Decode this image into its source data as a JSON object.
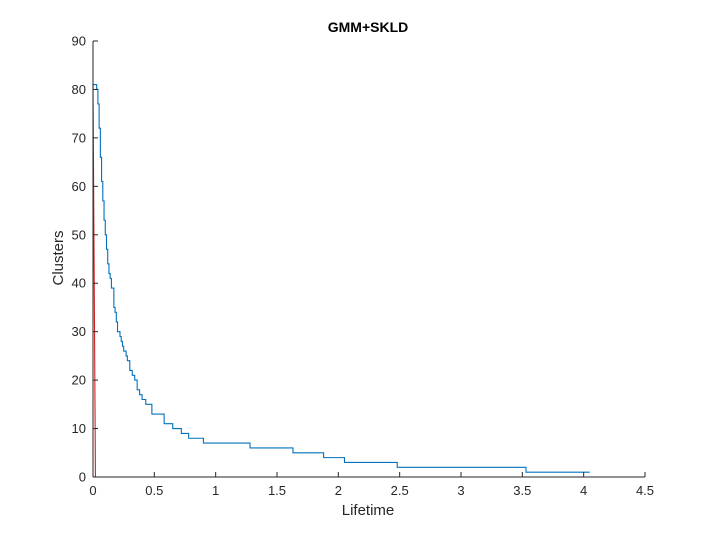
{
  "chart_data": {
    "type": "line",
    "title": "GMM+SKLD",
    "xlabel": "Lifetime",
    "ylabel": "Clusters",
    "xlim": [
      0,
      4.5
    ],
    "ylim": [
      0,
      90
    ],
    "xticks": [
      0,
      0.5,
      1,
      1.5,
      2,
      2.5,
      3,
      3.5,
      4,
      4.5
    ],
    "xtick_labels": [
      "0",
      "0.5",
      "1",
      "1.5",
      "2",
      "2.5",
      "3",
      "3.5",
      "4",
      "4.5"
    ],
    "yticks": [
      0,
      10,
      20,
      30,
      40,
      50,
      60,
      70,
      80,
      90
    ],
    "ytick_labels": [
      "0",
      "10",
      "20",
      "30",
      "40",
      "50",
      "60",
      "70",
      "80",
      "90"
    ],
    "grid": false,
    "colors": {
      "series_blue": "#0072BD",
      "series_red": "#D62020",
      "axis": "#262626"
    },
    "series": [
      {
        "style": "stairs",
        "color": "#0072BD",
        "x": [
          0.0,
          0.03,
          0.04,
          0.05,
          0.06,
          0.07,
          0.08,
          0.09,
          0.1,
          0.11,
          0.12,
          0.13,
          0.14,
          0.15,
          0.17,
          0.18,
          0.19,
          0.2,
          0.22,
          0.23,
          0.24,
          0.25,
          0.27,
          0.28,
          0.3,
          0.32,
          0.34,
          0.36,
          0.38,
          0.4,
          0.43,
          0.46,
          0.48,
          0.55,
          0.58,
          0.65,
          0.72,
          0.75,
          0.78,
          0.9,
          0.97,
          1.28,
          1.63,
          1.88,
          2.05,
          2.48,
          3.53,
          4.05
        ],
        "y": [
          81,
          80,
          77,
          72,
          66,
          61,
          57,
          53,
          50,
          47,
          44,
          42,
          41,
          39,
          35,
          34,
          32,
          30,
          29,
          28,
          27,
          26,
          25,
          24,
          22,
          21,
          20,
          18,
          17,
          16,
          15,
          15,
          13,
          13,
          11,
          10,
          9,
          9,
          8,
          7,
          7,
          6,
          5,
          4,
          3,
          2,
          1,
          1
        ]
      },
      {
        "style": "line",
        "color": "#D62020",
        "x": [
          0.0,
          0.0,
          0.02,
          4.05
        ],
        "y": [
          81,
          80,
          0,
          0
        ]
      }
    ]
  }
}
